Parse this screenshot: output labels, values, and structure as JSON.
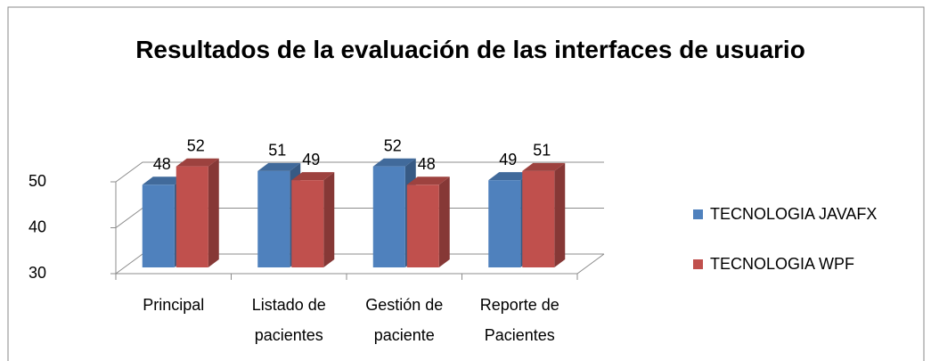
{
  "chart_data": {
    "type": "bar3d",
    "title": "Resultados de la evaluación de las interfaces de usuario",
    "categories": [
      "Principal",
      "Listado de pacientes",
      "Gestión de paciente",
      "Reporte de Pacientes"
    ],
    "series": [
      {
        "name": "TECNOLOGIA JAVAFX",
        "color": "#4f81bd",
        "values": [
          48,
          51,
          52,
          49
        ]
      },
      {
        "name": "TECNOLOGIA WPF",
        "color": "#c0504d",
        "values": [
          52,
          49,
          48,
          51
        ]
      }
    ],
    "ylim": [
      30,
      50
    ],
    "yticks": [
      30,
      40,
      50
    ],
    "grid": true,
    "legend": "right"
  }
}
